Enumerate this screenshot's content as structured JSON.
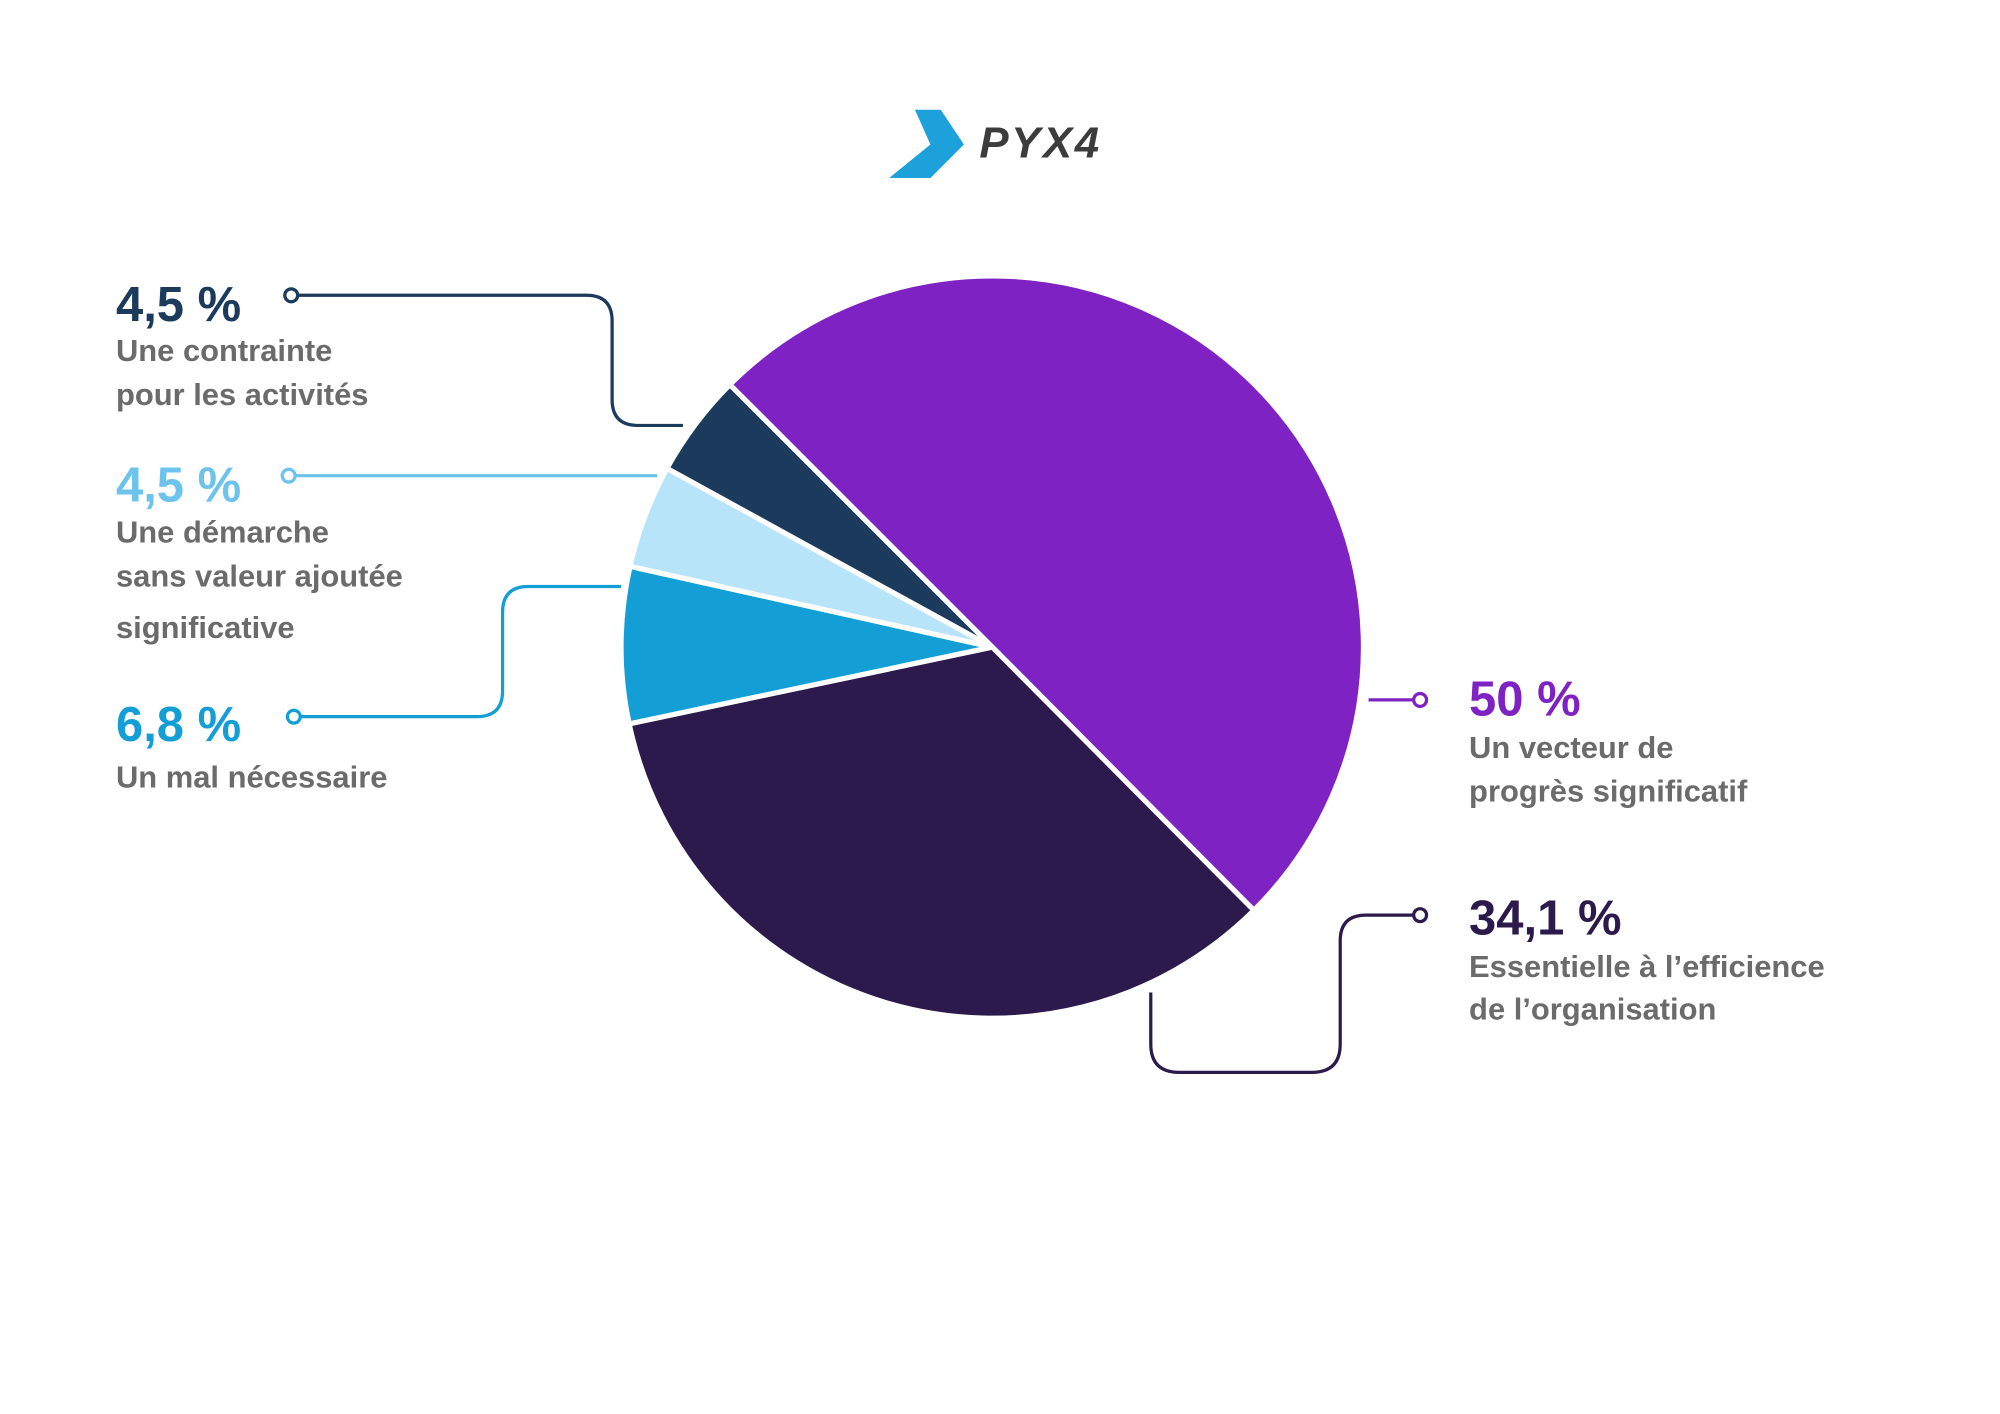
{
  "logo": "PYX4",
  "chart_data": {
    "type": "pie",
    "categories": [
      [
        "Un vecteur de",
        "progrès significatif"
      ],
      [
        "Essentielle à l’efficience",
        "de l’organisation"
      ],
      [
        "Un mal nécessaire"
      ],
      [
        "Une démarche",
        "sans valeur ajoutée",
        "significative"
      ],
      [
        "Une contrainte",
        "pour les activités"
      ]
    ],
    "values": [
      50,
      34.1,
      6.8,
      4.5,
      4.5
    ],
    "value_labels": [
      "50 %",
      "34,1 %",
      "6,8 %",
      "4,5 %",
      "4,5 %"
    ],
    "colors": [
      "#7f22c3",
      "#2c1a4d",
      "#149ed6",
      "#b8e4fa",
      "#1b3a5c"
    ]
  }
}
